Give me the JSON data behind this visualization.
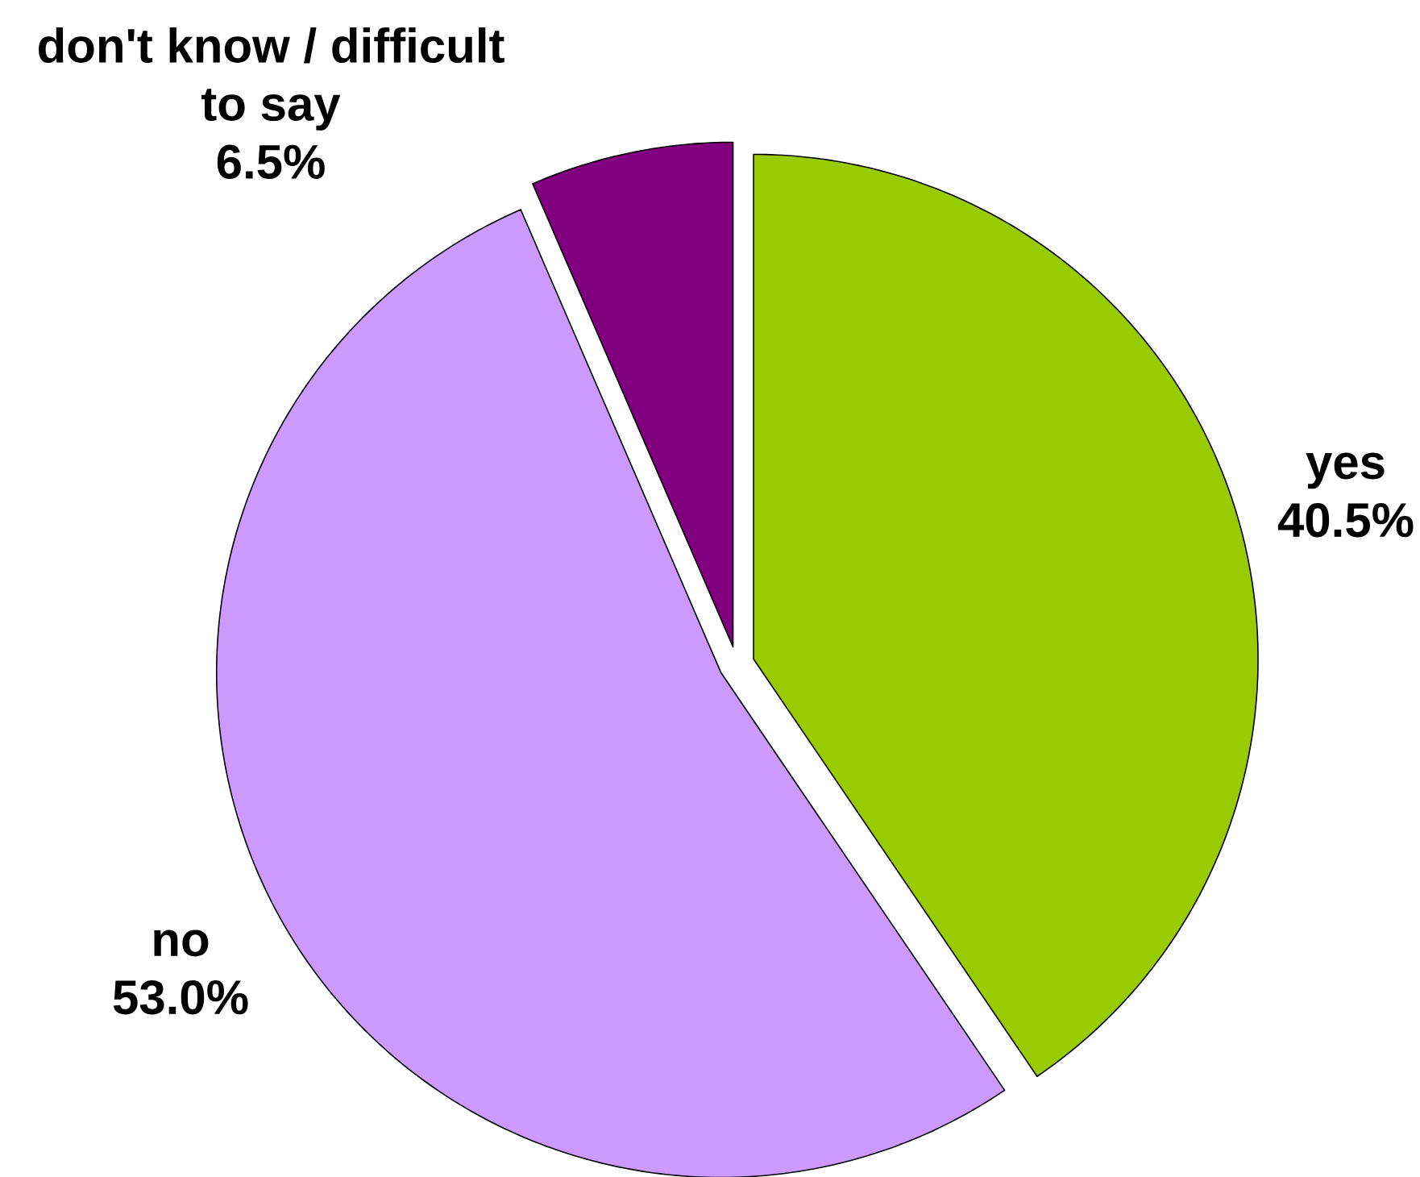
{
  "chart_data": {
    "type": "pie",
    "categories": [
      "yes",
      "no",
      "don't know / difficult to say"
    ],
    "values": [
      40.5,
      53.0,
      6.5
    ],
    "colors": [
      "#99cc00",
      "#cc99ff",
      "#800080"
    ],
    "value_labels": [
      "40.5%",
      "53.0%",
      "6.5%"
    ]
  }
}
